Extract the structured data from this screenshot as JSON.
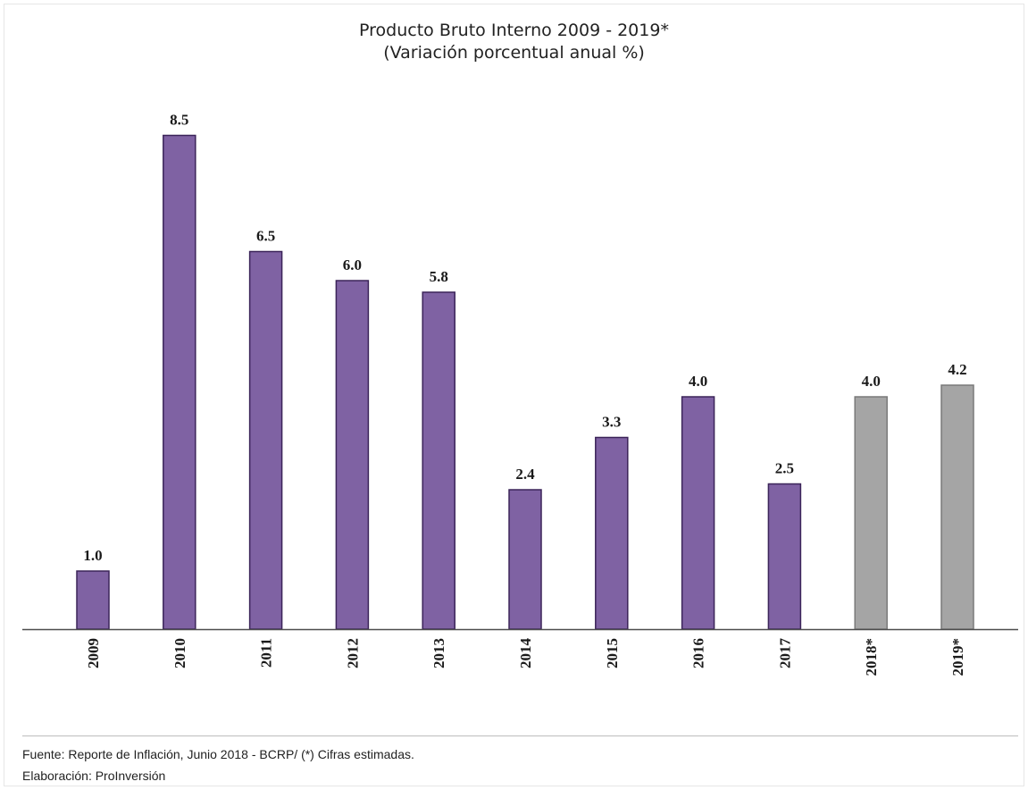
{
  "chart_data": {
    "type": "bar",
    "title": "Producto Bruto Interno 2009 - 2019*",
    "subtitle": "(Variación porcentual anual %)",
    "categories": [
      "2009",
      "2010",
      "2011",
      "2012",
      "2013",
      "2014",
      "2015",
      "2016",
      "2017",
      "2018*",
      "2019*"
    ],
    "values": [
      1.0,
      8.5,
      6.5,
      6.0,
      5.8,
      2.4,
      3.3,
      4.0,
      2.5,
      4.0,
      4.2
    ],
    "value_labels": [
      "1.0",
      "8.5",
      "6.5",
      "6.0",
      "5.8",
      "2.4",
      "3.3",
      "4.0",
      "2.5",
      "4.0",
      "4.2"
    ],
    "estimated": [
      false,
      false,
      false,
      false,
      false,
      false,
      false,
      false,
      false,
      true,
      true
    ],
    "ylim": [
      0,
      10
    ],
    "grid": false,
    "legend": "none",
    "colors": {
      "actual": "#7f62a3",
      "actual_border": "#3b2459",
      "estimated": "#a5a5a5",
      "estimated_border": "#7a7a7a",
      "axis": "#4d4d4d"
    }
  },
  "footer": {
    "source": "Fuente: Reporte de Inflación, Junio 2018 - BCRP/ (*) Cifras estimadas.",
    "elaboration": "Elaboración: ProInversión"
  }
}
